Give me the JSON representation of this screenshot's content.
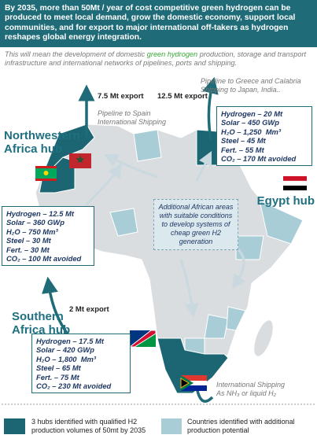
{
  "header": {
    "text": "By 2035, more than 50Mt / year of cost competitive green hydrogen can be produced to meet local demand, grow the domestic economy, support local communities, and for export to major international off-takers as hydrogen reshapes global energy integration."
  },
  "subtitle": {
    "before": "This will mean the development of domestic ",
    "highlight": "green hydrogen",
    "after": " production, storage and transport infrastructure and international networks of pipelines, ports and shipping."
  },
  "exports": [
    "7.5 Mt export",
    "12.5 Mt export",
    "2 Mt export"
  ],
  "routes": [
    [
      "Pipeline to Spain",
      "International Shipping"
    ],
    [
      "Pipeline to Greece and Calabria",
      "Shipping to Japan, India.."
    ],
    [
      "International Shipping",
      "As NH₃ or liquid H₂"
    ]
  ],
  "hubs": [
    {
      "name": [
        "Northwestern",
        "Africa hub"
      ],
      "stats": [
        "Hydrogen – 12.5 Mt",
        "Solar – 360 GWp",
        "H₂O – 750 Mm³",
        "Steel – 30 Mt",
        "Fert. – 30 Mt",
        "CO₂ – 100 Mt avoided"
      ]
    },
    {
      "name": [
        "Egypt hub"
      ],
      "stats": [
        "Hydrogen – 20 Mt",
        "Solar – 450 GWp",
        "H₂O – 1,250  Mm³",
        "Steel – 45 Mt",
        "Fert. – 55 Mt",
        "CO₂ – 170 Mt avoided"
      ]
    },
    {
      "name": [
        "Southern",
        "Africa hub"
      ],
      "stats": [
        "Hydrogen – 17.5 Mt",
        "Solar – 420 GWp",
        "H₂O – 1,800  Mm³",
        "Steel – 65 Mt",
        "Fert. – 75 Mt",
        "CO₂ – 230 Mt avoided"
      ]
    }
  ],
  "additional_areas": "Additional African areas with suitable conditions to develop systems of cheap green H2 generation",
  "legend": [
    "3 hubs identified with qualified H2 production volumes of 50mt by 2035",
    "Countries identified with additional production potential"
  ]
}
